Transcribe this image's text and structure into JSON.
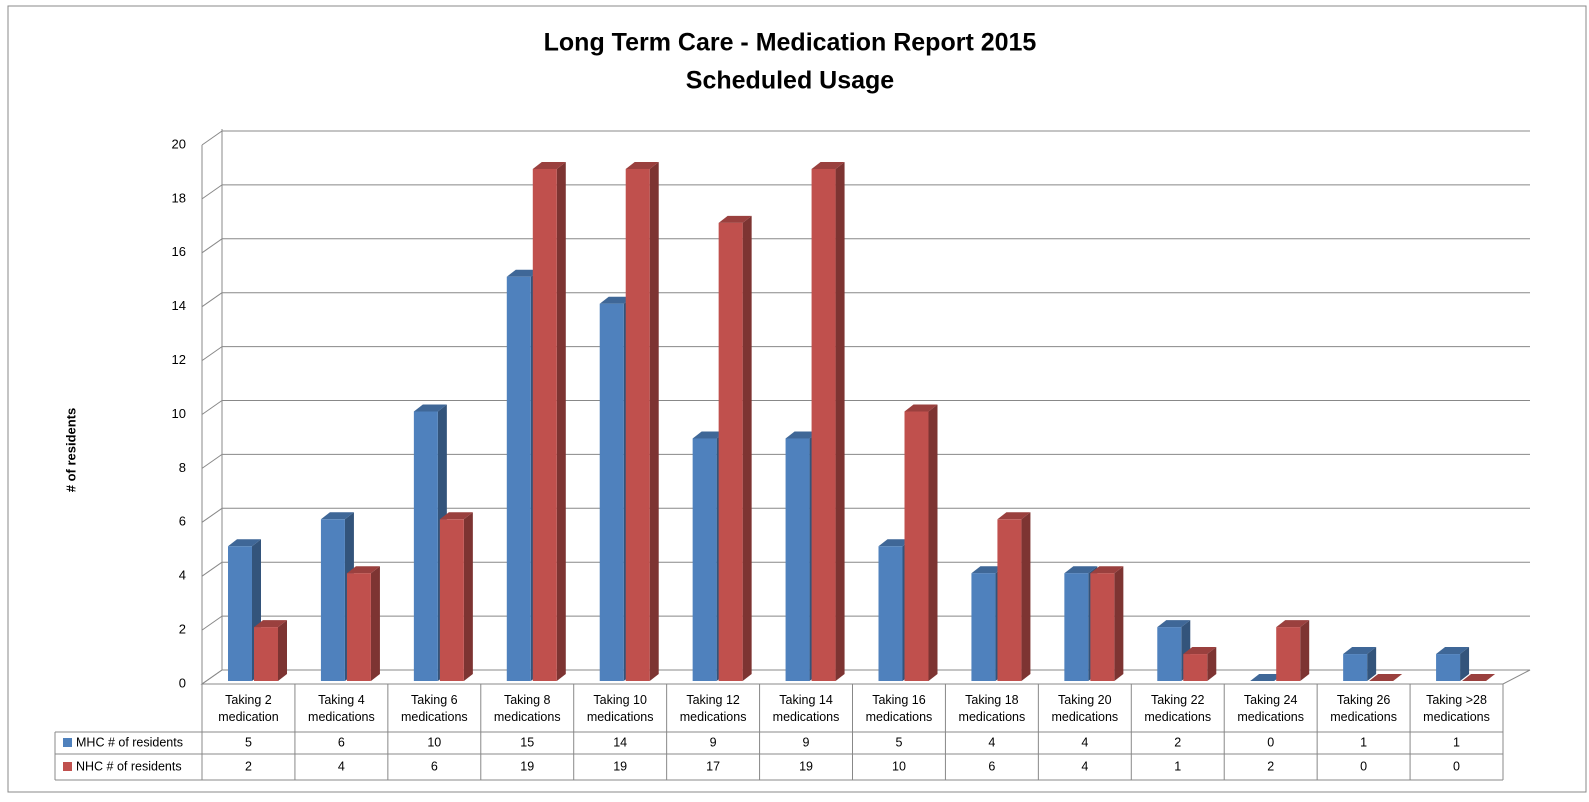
{
  "chart_data": {
    "type": "bar",
    "title": "Long Term Care - Medication Report 2015",
    "subtitle": "Scheduled Usage",
    "ylabel": "# of residents",
    "categories": [
      "Taking 2 medication",
      "Taking 4 medications",
      "Taking 6 medications",
      "Taking 8 medications",
      "Taking 10 medications",
      "Taking 12 medications",
      "Taking 14 medications",
      "Taking 16 medications",
      "Taking 18 medications",
      "Taking 20 medications",
      "Taking 22 medications",
      "Taking 24 medications",
      "Taking 26 medications",
      "Taking >28 medications"
    ],
    "series": [
      {
        "name": "MHC # of residents",
        "color": "#4f81bd",
        "values": [
          5,
          6,
          10,
          15,
          14,
          9,
          9,
          5,
          4,
          4,
          2,
          0,
          1,
          1
        ]
      },
      {
        "name": "NHC # of residents",
        "color": "#c0504d",
        "values": [
          2,
          4,
          6,
          19,
          19,
          17,
          19,
          10,
          6,
          4,
          1,
          2,
          0,
          0
        ]
      }
    ],
    "ylim": [
      0,
      20
    ],
    "yticks": [
      0,
      2,
      4,
      6,
      8,
      10,
      12,
      14,
      16,
      18,
      20
    ],
    "grid": true
  }
}
